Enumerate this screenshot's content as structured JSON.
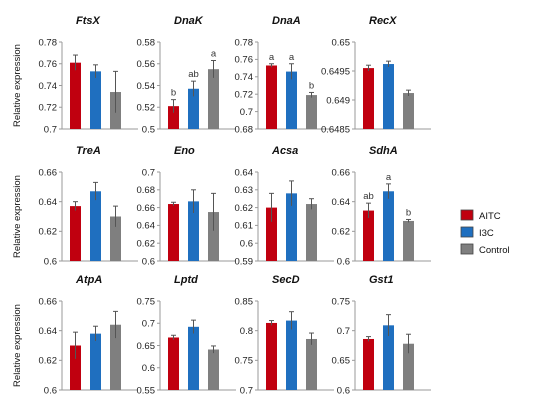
{
  "y_axis_label": "Relative expression",
  "legend": [
    {
      "name": "AITC",
      "color": "#c0000f"
    },
    {
      "name": "I3C",
      "color": "#1f6fbf"
    },
    {
      "name": "Control",
      "color": "#7f7f7f"
    }
  ],
  "chart_data": [
    {
      "type": "bar",
      "title": "FtsX",
      "categories": [
        "AITC",
        "I3C",
        "Control"
      ],
      "values": [
        0.761,
        0.753,
        0.734
      ],
      "errors": [
        0.007,
        0.006,
        0.019
      ],
      "ylim": [
        0.7,
        0.78
      ],
      "yticks": [
        "0.7",
        "0.72",
        "0.74",
        "0.76",
        "0.78"
      ],
      "labels": []
    },
    {
      "type": "bar",
      "title": "DnaK",
      "categories": [
        "AITC",
        "I3C",
        "Control"
      ],
      "values": [
        0.521,
        0.537,
        0.555
      ],
      "errors": [
        0.006,
        0.007,
        0.008
      ],
      "ylim": [
        0.5,
        0.58
      ],
      "yticks": [
        "0.5",
        "0.52",
        "0.54",
        "0.56",
        "0.58"
      ],
      "labels": [
        "b",
        "ab",
        "a"
      ]
    },
    {
      "type": "bar",
      "title": "DnaA",
      "categories": [
        "AITC",
        "I3C",
        "Control"
      ],
      "values": [
        0.753,
        0.746,
        0.719
      ],
      "errors": [
        0.002,
        0.009,
        0.003
      ],
      "ylim": [
        0.68,
        0.78
      ],
      "yticks": [
        "0.68",
        "0.7",
        "0.72",
        "0.74",
        "0.76",
        "0.78"
      ],
      "labels": [
        "a",
        "a",
        "b"
      ]
    },
    {
      "type": "bar",
      "title": "RecX",
      "categories": [
        "AITC",
        "I3C",
        "Control"
      ],
      "values": [
        0.64955,
        0.64962,
        0.64912
      ],
      "errors": [
        5e-05,
        5e-05,
        5e-05
      ],
      "ylim": [
        0.6485,
        0.65
      ],
      "yticks": [
        "0.6485",
        "0.649",
        "0.6495",
        "0.65"
      ],
      "labels": []
    },
    {
      "type": "bar",
      "title": "TreA",
      "categories": [
        "AITC",
        "I3C",
        "Control"
      ],
      "values": [
        0.637,
        0.647,
        0.63
      ],
      "errors": [
        0.003,
        0.006,
        0.007
      ],
      "ylim": [
        0.6,
        0.66
      ],
      "yticks": [
        "0.6",
        "0.62",
        "0.64",
        "0.66"
      ],
      "labels": []
    },
    {
      "type": "bar",
      "title": "Eno",
      "categories": [
        "AITC",
        "I3C",
        "Control"
      ],
      "values": [
        0.664,
        0.667,
        0.655
      ],
      "errors": [
        0.002,
        0.013,
        0.021
      ],
      "ylim": [
        0.6,
        0.7
      ],
      "yticks": [
        "0.6",
        "0.62",
        "0.64",
        "0.66",
        "0.68",
        "0.7"
      ],
      "labels": []
    },
    {
      "type": "bar",
      "title": "Acsa",
      "categories": [
        "AITC",
        "I3C",
        "Control"
      ],
      "values": [
        0.62,
        0.628,
        0.622
      ],
      "errors": [
        0.008,
        0.007,
        0.003
      ],
      "ylim": [
        0.59,
        0.64
      ],
      "yticks": [
        "0.59",
        "0.6",
        "0.61",
        "0.62",
        "0.63",
        "0.64"
      ],
      "labels": []
    },
    {
      "type": "bar",
      "title": "SdhA",
      "categories": [
        "AITC",
        "I3C",
        "Control"
      ],
      "values": [
        0.634,
        0.647,
        0.627
      ],
      "errors": [
        0.005,
        0.005,
        0.001
      ],
      "ylim": [
        0.6,
        0.66
      ],
      "yticks": [
        "0.6",
        "0.62",
        "0.64",
        "0.66"
      ],
      "labels": [
        "ab",
        "a",
        "b"
      ]
    },
    {
      "type": "bar",
      "title": "AtpA",
      "categories": [
        "AITC",
        "I3C",
        "Control"
      ],
      "values": [
        0.63,
        0.638,
        0.644
      ],
      "errors": [
        0.009,
        0.005,
        0.009
      ],
      "ylim": [
        0.6,
        0.66
      ],
      "yticks": [
        "0.6",
        "0.62",
        "0.64",
        "0.66"
      ],
      "labels": []
    },
    {
      "type": "bar",
      "title": "Lptd",
      "categories": [
        "AITC",
        "I3C",
        "Control"
      ],
      "values": [
        0.668,
        0.692,
        0.641
      ],
      "errors": [
        0.005,
        0.015,
        0.008
      ],
      "ylim": [
        0.55,
        0.75
      ],
      "yticks": [
        "0.55",
        "0.6",
        "0.65",
        "0.7",
        "0.75"
      ],
      "labels": []
    },
    {
      "type": "bar",
      "title": "SecD",
      "categories": [
        "AITC",
        "I3C",
        "Control"
      ],
      "values": [
        0.813,
        0.817,
        0.786
      ],
      "errors": [
        0.004,
        0.015,
        0.01
      ],
      "ylim": [
        0.7,
        0.85
      ],
      "yticks": [
        "0.7",
        "0.75",
        "0.8",
        "0.85"
      ],
      "labels": []
    },
    {
      "type": "bar",
      "title": "Gst1",
      "categories": [
        "AITC",
        "I3C",
        "Control"
      ],
      "values": [
        0.686,
        0.709,
        0.678
      ],
      "errors": [
        0.004,
        0.018,
        0.016
      ],
      "ylim": [
        0.6,
        0.75
      ],
      "yticks": [
        "0.6",
        "0.65",
        "0.7",
        "0.75"
      ],
      "labels": []
    }
  ]
}
